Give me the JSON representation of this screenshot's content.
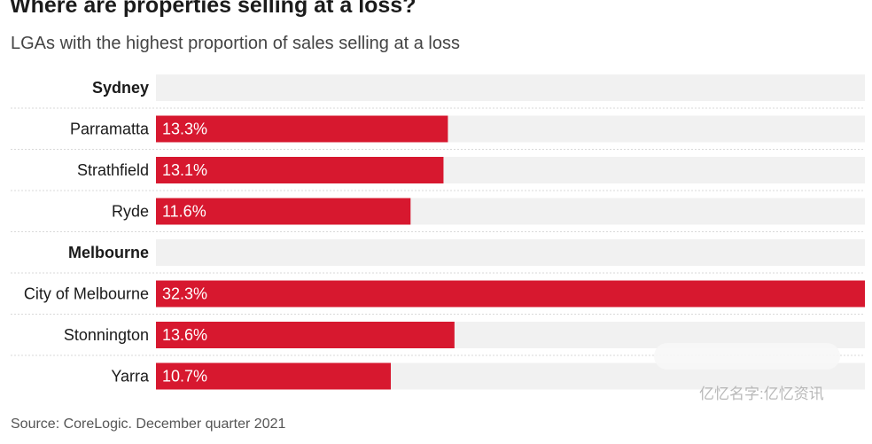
{
  "title": "Where are properties selling at a loss?",
  "subtitle": "LGAs with the highest proportion of sales selling at a loss",
  "source": "Source: CoreLogic. December quarter 2021",
  "watermark": "亿忆名字:亿忆资讯",
  "colors": {
    "bar": "#d7182f",
    "track": "#f1f1f1",
    "divider": "#d9d9d9"
  },
  "chart_data": {
    "type": "bar",
    "orientation": "horizontal",
    "xlim": [
      0,
      32.3
    ],
    "unit": "%",
    "groups": [
      {
        "name": "Sydney",
        "categories": [
          "Parramatta",
          "Strathfield",
          "Ryde"
        ],
        "values": [
          13.3,
          13.1,
          11.6
        ],
        "labels": [
          "13.3%",
          "13.1%",
          "11.6%"
        ]
      },
      {
        "name": "Melbourne",
        "categories": [
          "City of Melbourne",
          "Stonnington",
          "Yarra"
        ],
        "values": [
          32.3,
          13.6,
          10.7
        ],
        "labels": [
          "32.3%",
          "13.6%",
          "10.7%"
        ]
      }
    ]
  }
}
